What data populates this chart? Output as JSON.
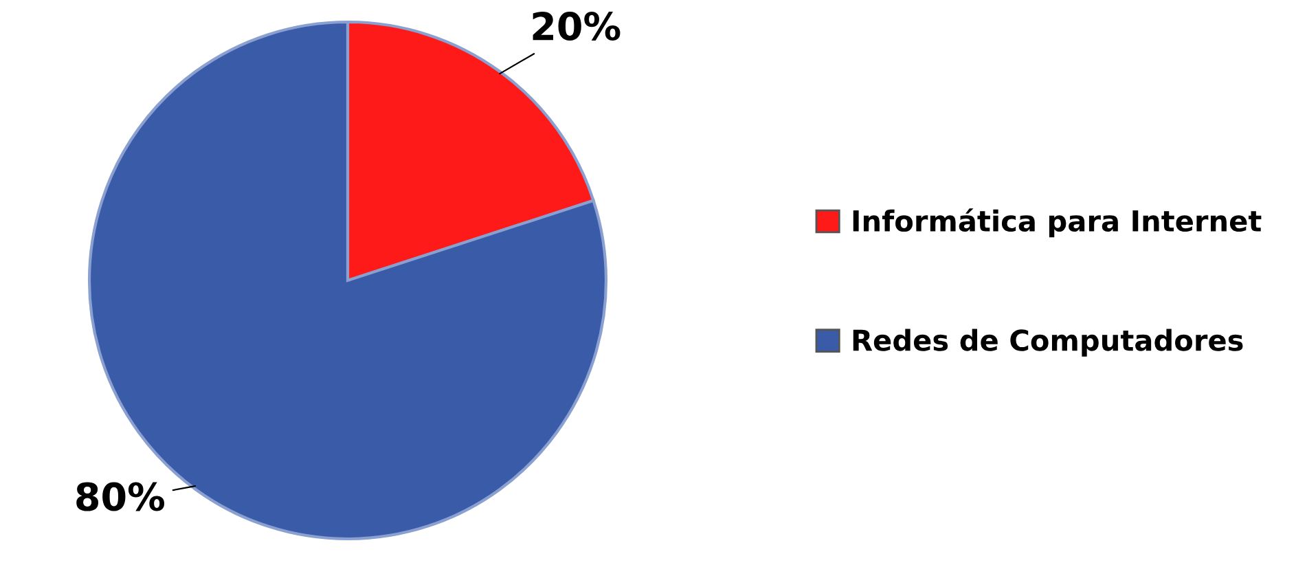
{
  "chart_data": {
    "type": "pie",
    "categories": [
      "Informática para Internet",
      "Redes de Computadores"
    ],
    "values": [
      20,
      80
    ],
    "colors": [
      "#ff1a1a",
      "#3a5ca8"
    ],
    "value_labels": [
      "20%",
      "80%"
    ],
    "legend": "right"
  }
}
